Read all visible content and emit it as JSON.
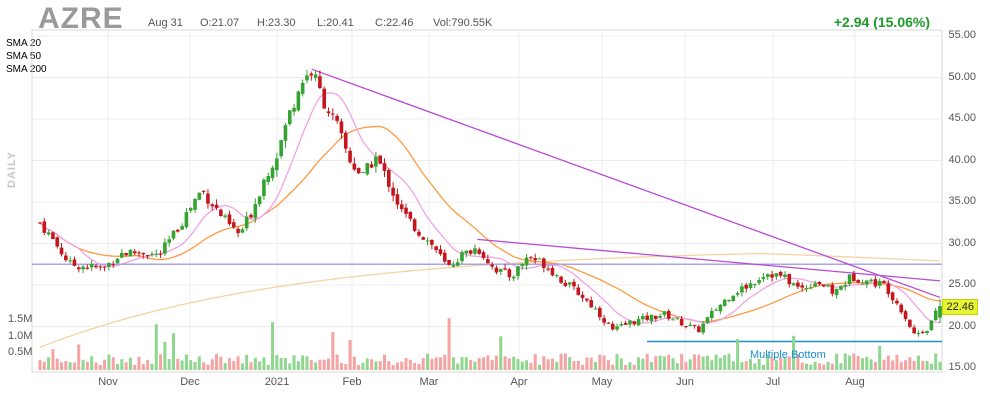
{
  "header": {
    "ticker": "AZRE",
    "date": "Aug 31",
    "open": "O:21.07",
    "high": "H:23.30",
    "low": "L:20.41",
    "close": "C:22.46",
    "volume": "Vol:790.55K",
    "change": "+2.94 (15.06%)",
    "period_label": "DAILY"
  },
  "legend": [
    {
      "name": "SMA 20",
      "color": "#f0a3e6"
    },
    {
      "name": "SMA 50",
      "color": "#ff9a40"
    },
    {
      "name": "SMA 200",
      "color": "#f5d3a0"
    }
  ],
  "last_price_label": "22.46",
  "annotation": "Multiple Bottom",
  "colors": {
    "up": "#34a332",
    "down": "#c4161c",
    "vol_up": "#8fd68f",
    "vol_down": "#f5a3a3",
    "trendline": "#b84bd6",
    "support": "#a9a4e6",
    "annotation": "#1a8fd0"
  },
  "chart_data": {
    "type": "candlestick",
    "title": "AZRE",
    "xlabel": "",
    "ylabel": "",
    "ylim": [
      15,
      55
    ],
    "yticks": [
      "55.00",
      "50.00",
      "45.00",
      "40.00",
      "35.00",
      "30.00",
      "25.00",
      "20.00",
      "15.00"
    ],
    "volume_ticks": [
      "1.5M",
      "1.0M",
      "0.5M"
    ],
    "volume_max": 1.9,
    "months": [
      "Nov",
      "Dec",
      "2021",
      "Feb",
      "Mar",
      "Apr",
      "May",
      "Jun",
      "Jul",
      "Aug"
    ],
    "series": [
      {
        "name": "Price",
        "anchors": [
          {
            "m": 0,
            "p": 32.5
          },
          {
            "m": 0.3,
            "p": 30.5
          },
          {
            "m": 0.7,
            "p": 27.5
          },
          {
            "m": 1.1,
            "p": 27.2
          },
          {
            "m": 1.5,
            "p": 27.0
          },
          {
            "m": 1.9,
            "p": 28.8
          },
          {
            "m": 2.4,
            "p": 29.0
          },
          {
            "m": 2.8,
            "p": 28.5
          },
          {
            "m": 3.2,
            "p": 31.5
          },
          {
            "m": 3.5,
            "p": 34.0
          },
          {
            "m": 3.8,
            "p": 36.5
          },
          {
            "m": 4.1,
            "p": 34.5
          },
          {
            "m": 4.4,
            "p": 32.5
          },
          {
            "m": 4.7,
            "p": 31.0
          },
          {
            "m": 5.0,
            "p": 34.0
          },
          {
            "m": 5.3,
            "p": 38.0
          },
          {
            "m": 5.6,
            "p": 41.0
          },
          {
            "m": 5.9,
            "p": 46.0
          },
          {
            "m": 6.15,
            "p": 49.5
          },
          {
            "m": 6.4,
            "p": 50.8
          },
          {
            "m": 6.7,
            "p": 47.0
          },
          {
            "m": 7.0,
            "p": 44.0
          },
          {
            "m": 7.3,
            "p": 40.0
          },
          {
            "m": 7.6,
            "p": 38.0
          },
          {
            "m": 7.9,
            "p": 40.5
          },
          {
            "m": 8.2,
            "p": 37.5
          },
          {
            "m": 8.5,
            "p": 34.0
          },
          {
            "m": 8.9,
            "p": 31.5
          },
          {
            "m": 9.3,
            "p": 29.5
          },
          {
            "m": 9.6,
            "p": 27.0
          },
          {
            "m": 9.9,
            "p": 28.5
          },
          {
            "m": 10.3,
            "p": 29.5
          },
          {
            "m": 10.7,
            "p": 27.0
          },
          {
            "m": 11.1,
            "p": 26.0
          },
          {
            "m": 11.5,
            "p": 28.5
          },
          {
            "m": 11.9,
            "p": 27.5
          },
          {
            "m": 12.3,
            "p": 25.5
          },
          {
            "m": 12.7,
            "p": 24.0
          },
          {
            "m": 13.1,
            "p": 22.0
          },
          {
            "m": 13.5,
            "p": 19.5
          },
          {
            "m": 13.9,
            "p": 20.5
          },
          {
            "m": 14.3,
            "p": 21.0
          },
          {
            "m": 14.7,
            "p": 21.5
          },
          {
            "m": 15.1,
            "p": 20.5
          },
          {
            "m": 15.5,
            "p": 19.5
          },
          {
            "m": 15.9,
            "p": 22.0
          },
          {
            "m": 16.3,
            "p": 24.0
          },
          {
            "m": 16.7,
            "p": 25.0
          },
          {
            "m": 17.1,
            "p": 26.5
          },
          {
            "m": 17.5,
            "p": 26.0
          },
          {
            "m": 17.9,
            "p": 24.5
          },
          {
            "m": 18.3,
            "p": 25.5
          },
          {
            "m": 18.7,
            "p": 24.0
          },
          {
            "m": 19.1,
            "p": 26.0
          },
          {
            "m": 19.5,
            "p": 25.5
          },
          {
            "m": 19.9,
            "p": 25.0
          },
          {
            "m": 20.3,
            "p": 22.0
          },
          {
            "m": 20.6,
            "p": 19.0
          },
          {
            "m": 20.9,
            "p": 19.8
          },
          {
            "m": 21.2,
            "p": 22.46
          }
        ]
      }
    ],
    "trendlines": [
      {
        "from": {
          "m": 6.4,
          "p": 51.0
        },
        "to": {
          "m": 21.2,
          "p": 23.5
        }
      },
      {
        "from": {
          "m": 10.3,
          "p": 30.5
        },
        "to": {
          "m": 21.2,
          "p": 25.5
        }
      }
    ],
    "horizontal_lines": [
      {
        "p": 27.5,
        "label": ""
      },
      {
        "p": 18.2,
        "label": "Multiple Bottom",
        "from_m": 14.3
      }
    ]
  }
}
